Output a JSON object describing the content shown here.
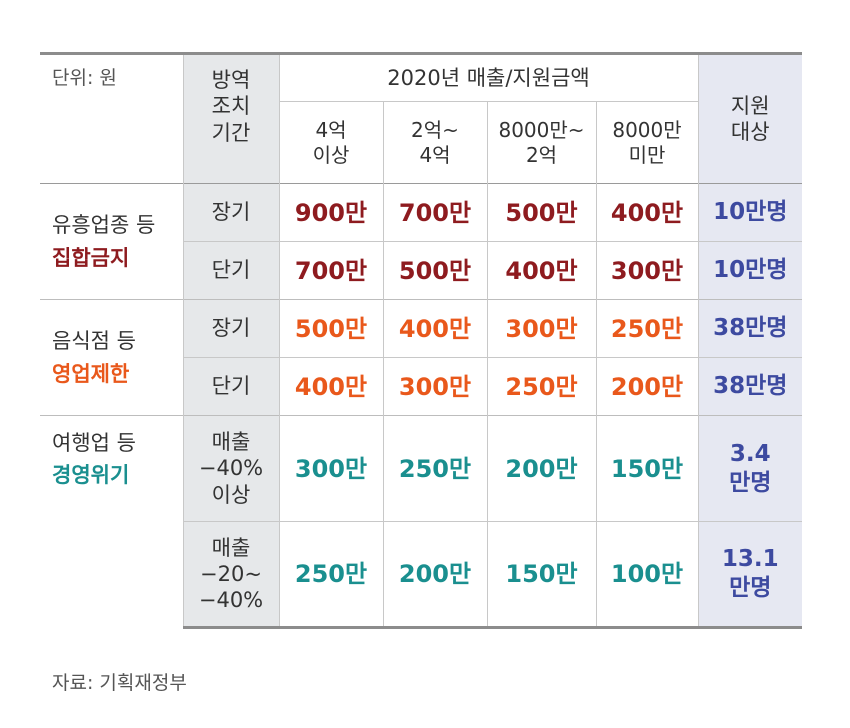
{
  "unit_label": "단위: 원",
  "period_header": [
    "방역",
    "조치",
    "기간"
  ],
  "year_header": "2020년 매출/지원금액",
  "revenue_brackets": [
    [
      "4억",
      "이상"
    ],
    [
      "2억~",
      "4억"
    ],
    [
      "8000만~",
      "2억"
    ],
    [
      "8000만",
      "미만"
    ]
  ],
  "target_header": [
    "지원",
    "대상"
  ],
  "groups": [
    {
      "label": "유흥업종 등",
      "emphasis": "집합금지",
      "color": "#8e1b1f",
      "rows": [
        {
          "period": [
            "장기"
          ],
          "amounts": [
            "900만",
            "700만",
            "500만",
            "400만"
          ],
          "target": [
            "10만명"
          ]
        },
        {
          "period": [
            "단기"
          ],
          "amounts": [
            "700만",
            "500만",
            "400만",
            "300만"
          ],
          "target": [
            "10만명"
          ]
        }
      ]
    },
    {
      "label": "음식점 등",
      "emphasis": "영업제한",
      "color": "#e9581b",
      "rows": [
        {
          "period": [
            "장기"
          ],
          "amounts": [
            "500만",
            "400만",
            "300만",
            "250만"
          ],
          "target": [
            "38만명"
          ]
        },
        {
          "period": [
            "단기"
          ],
          "amounts": [
            "400만",
            "300만",
            "250만",
            "200만"
          ],
          "target": [
            "38만명"
          ]
        }
      ]
    },
    {
      "label": "여행업 등",
      "emphasis": "경영위기",
      "color": "#1a8f8f",
      "rows": [
        {
          "period": [
            "매출",
            "−40%",
            "이상"
          ],
          "amounts": [
            "300만",
            "250만",
            "200만",
            "150만"
          ],
          "target": [
            "3.4",
            "만명"
          ]
        },
        {
          "period": [
            "매출",
            "−20~",
            "−40%"
          ],
          "amounts": [
            "250만",
            "200만",
            "150만",
            "100만"
          ],
          "target": [
            "13.1",
            "만명"
          ]
        }
      ]
    }
  ],
  "target_color": "#3d4aa0",
  "source": "자료: 기획재정부"
}
